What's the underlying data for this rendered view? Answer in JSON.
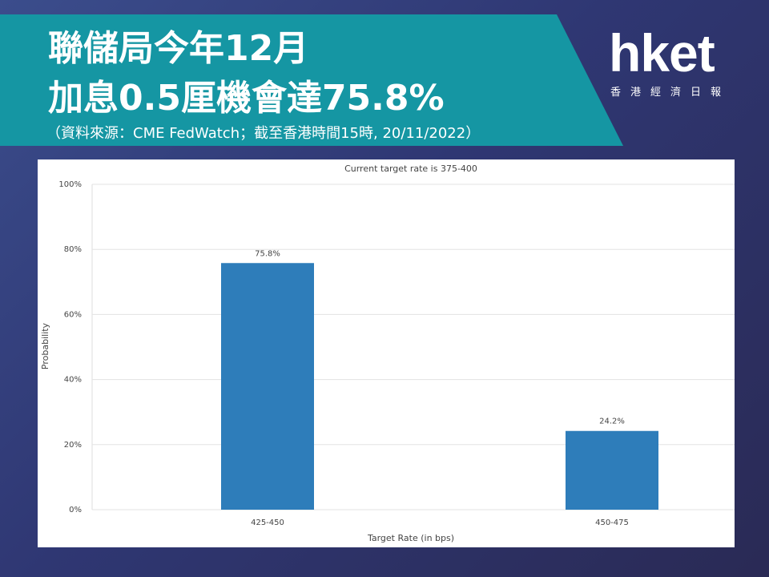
{
  "header": {
    "title_lines": [
      "聯儲局今年12月",
      "加息0.5厘機會達75.8%"
    ],
    "source": "（資料來源：CME FedWatch；截至香港時間15時, 20/11/2022）",
    "logo": "hket",
    "logo_sub": "香港經濟日報"
  },
  "chart_data": {
    "type": "bar",
    "title": "Current target rate is 375-400",
    "categories": [
      "425-450",
      "450-475"
    ],
    "values": [
      75.8,
      24.2
    ],
    "value_labels": [
      "75.8%",
      "24.2%"
    ],
    "color": "#2e7dba",
    "ylim": [
      0,
      100
    ],
    "yticks": [
      {
        "value": 0,
        "label": "0%"
      },
      {
        "value": 20,
        "label": "20%"
      },
      {
        "value": 40,
        "label": "40%"
      },
      {
        "value": 60,
        "label": "60%"
      },
      {
        "value": 80,
        "label": "80%"
      },
      {
        "value": 100,
        "label": "100%"
      }
    ],
    "y_label": "Probability",
    "x_label": "Target Rate (in bps)",
    "grid": true
  }
}
